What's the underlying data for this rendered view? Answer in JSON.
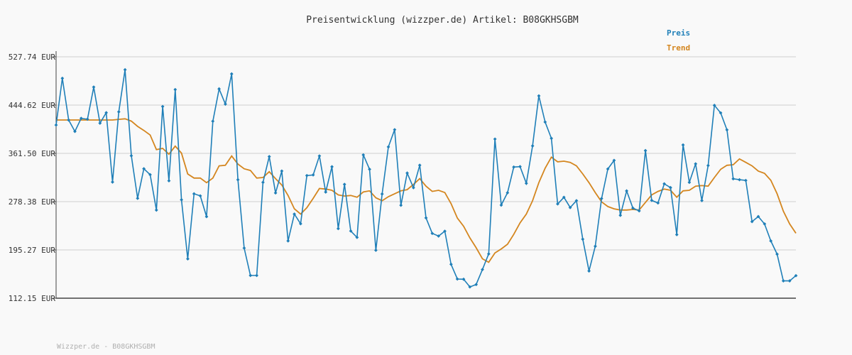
{
  "chart_data": {
    "type": "line",
    "title": "Preisentwicklung (wizzper.de) Artikel: B08GKHSGBM",
    "yticks": [
      "527.74 EUR",
      "444.62 EUR",
      "361.50 EUR",
      "278.38 EUR",
      "195.27 EUR",
      "112.15 EUR"
    ],
    "ylim": [
      112.15,
      527.74
    ],
    "grid": true,
    "legend_position": "top-right",
    "colors": {
      "preis": "#1f7fb8",
      "trend": "#d4861f"
    },
    "series": [
      {
        "name": "Preis",
        "values": [
          410.3,
          490.8,
          418.9,
          399.3,
          421.8,
          420.3,
          475.6,
          413.5,
          431.5,
          312.1,
          433.0,
          505.5,
          357.4,
          284.1,
          335.0,
          324.8,
          263.8,
          442.2,
          314.3,
          471.3,
          281.6,
          179.9,
          291.9,
          288.3,
          252.6,
          416.8,
          472.5,
          446.3,
          498.3,
          316.1,
          198.5,
          151.3,
          151.3,
          311.6,
          356.0,
          293.4,
          331.1,
          210.8,
          257.0,
          240.3,
          323.3,
          324.4,
          357.1,
          294.9,
          338.5,
          231.9,
          308.2,
          227.8,
          216.8,
          358.9,
          334.1,
          194.7,
          291.6,
          372.6,
          402.3,
          272.1,
          327.6,
          302.4,
          341.1,
          250.4,
          223.7,
          219.1,
          227.5,
          170.5,
          145.2,
          144.8,
          131.6,
          135.7,
          161.5,
          188.4,
          386.1,
          272.5,
          293.7,
          337.9,
          338.7,
          309.9,
          374.4,
          460.5,
          415.4,
          387.3,
          274.4,
          285.9,
          268.2,
          280.1,
          213.8,
          159.0,
          201.6,
          283.7,
          334.6,
          349.4,
          254.8,
          296.8,
          267.3,
          262.5,
          366.3,
          280.5,
          276.1,
          309.1,
          302.6,
          221.6,
          376.0,
          311.6,
          343.4,
          280.2,
          340.6,
          444.2,
          431.2,
          402.0,
          317.7,
          316.1,
          314.9,
          244.0,
          252.7,
          240.0,
          210.7,
          188.0,
          142.0,
          142.0,
          151.0
        ]
      },
      {
        "name": "Trend",
        "values": [
          419.0,
          419.0,
          419.0,
          419.0,
          419.0,
          419.0,
          419.0,
          419.0,
          419.0,
          419.0,
          420.0,
          421.0,
          417.0,
          408.0,
          401.0,
          393.0,
          368.0,
          370.0,
          360.0,
          374.0,
          362.0,
          326.0,
          319.0,
          319.0,
          311.0,
          319.0,
          340.0,
          341.0,
          357.0,
          343.0,
          335.0,
          332.0,
          319.0,
          320.0,
          330.0,
          318.0,
          307.0,
          289.0,
          266.0,
          257.0,
          268.0,
          284.0,
          301.0,
          300.0,
          298.0,
          290.0,
          288.0,
          289.0,
          286.0,
          295.0,
          297.0,
          285.0,
          280.0,
          287.0,
          292.0,
          297.0,
          299.0,
          308.0,
          318.0,
          305.0,
          296.0,
          298.0,
          294.0,
          275.0,
          250.0,
          236.0,
          216.0,
          199.0,
          180.0,
          174.0,
          190.0,
          197.0,
          205.0,
          222.0,
          242.0,
          257.0,
          280.0,
          311.0,
          336.0,
          355.0,
          347.0,
          348.0,
          346.0,
          340.0,
          326.0,
          311.0,
          294.0,
          278.0,
          270.0,
          266.0,
          264.0,
          264.0,
          265.0,
          264.0,
          277.0,
          290.0,
          296.0,
          300.0,
          298.0,
          286.0,
          297.0,
          298.0,
          305.0,
          306.0,
          305.0,
          320.0,
          334.0,
          341.0,
          342.0,
          352.0,
          346.0,
          340.0,
          331.0,
          327.0,
          315.0,
          292.0,
          262.0,
          240.0,
          224.0
        ]
      }
    ]
  },
  "footer": "Wizzper.de - B08GKHSGBM"
}
